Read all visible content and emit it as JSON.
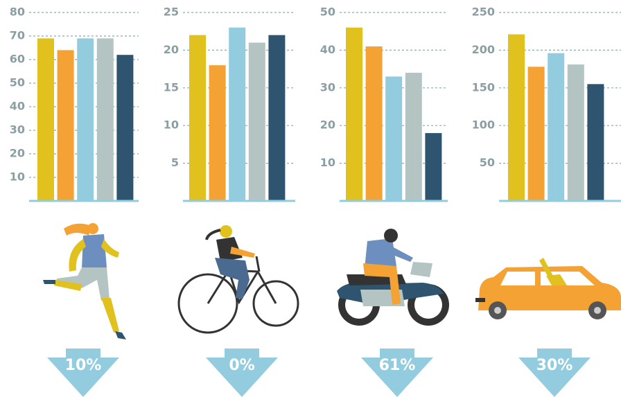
{
  "chart_data": [
    {
      "type": "bar",
      "values": [
        69,
        64,
        69,
        69,
        62
      ],
      "colors": [
        "#e1c11e",
        "#f3a233",
        "#92ccde",
        "#b4c4c3",
        "#2e5470"
      ],
      "ylim": [
        0,
        80
      ],
      "yticks": [
        10,
        20,
        30,
        40,
        50,
        60,
        70,
        80
      ],
      "grid": true,
      "annotation": "10%"
    },
    {
      "type": "bar",
      "values": [
        22,
        18,
        23,
        21,
        22
      ],
      "colors": [
        "#e1c11e",
        "#f3a233",
        "#92ccde",
        "#b4c4c3",
        "#2e5470"
      ],
      "ylim": [
        0,
        25
      ],
      "yticks": [
        5,
        10,
        15,
        20,
        25
      ],
      "grid": true,
      "annotation": "0%"
    },
    {
      "type": "bar",
      "values": [
        46,
        41,
        33,
        34,
        18
      ],
      "colors": [
        "#e1c11e",
        "#f3a233",
        "#92ccde",
        "#b4c4c3",
        "#2e5470"
      ],
      "ylim": [
        0,
        50
      ],
      "yticks": [
        10,
        20,
        30,
        40,
        50
      ],
      "grid": true,
      "annotation": "61%"
    },
    {
      "type": "bar",
      "values": [
        221,
        178,
        196,
        181,
        155
      ],
      "colors": [
        "#e1c11e",
        "#f3a233",
        "#92ccde",
        "#b4c4c3",
        "#2e5470"
      ],
      "ylim": [
        0,
        250
      ],
      "yticks": [
        50,
        100,
        150,
        200,
        250
      ],
      "grid": true,
      "annotation": "30%"
    }
  ]
}
